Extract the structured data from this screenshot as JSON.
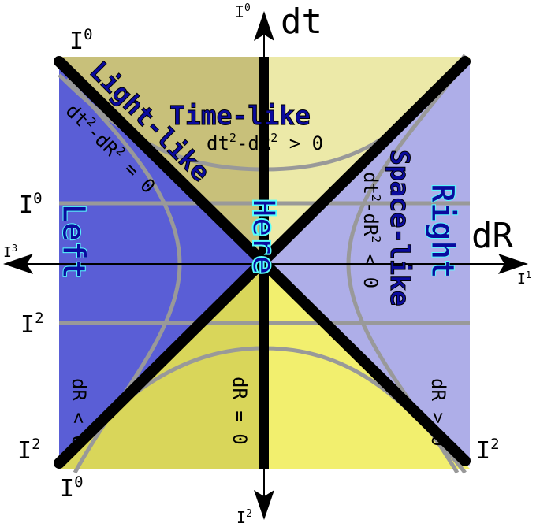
{
  "axes": {
    "time_label": "dt",
    "space_label": "dR"
  },
  "regions": {
    "time_like": {
      "label": "Time-like",
      "condition_prefix": "dt",
      "condition_mid": "-dR",
      "condition_suffix": " > 0",
      "exponent": "2"
    },
    "light_like": {
      "label": "Light-like",
      "condition_prefix": "dt",
      "condition_mid": "-dR",
      "condition_suffix": " = 0",
      "exponent": "2"
    },
    "space_like": {
      "label": "Space-like",
      "condition_prefix": "dt",
      "condition_mid": "-dR",
      "condition_suffix": " < 0",
      "exponent": "2"
    },
    "left": "Left",
    "right": "Right",
    "here": "Here"
  },
  "conditions": {
    "dr_zero": "dR = 0",
    "dr_negative": "dR < 0",
    "dr_positive": "dR > 0"
  },
  "infinity": {
    "I0_top_axis": {
      "letter": "I",
      "index": "0"
    },
    "I0_top_left": {
      "letter": "I",
      "index": "0"
    },
    "I0_mid_left": {
      "letter": "I",
      "index": "0"
    },
    "I3_left": {
      "letter": "I",
      "index": "3"
    },
    "I1_right": {
      "letter": "I",
      "index": "1"
    },
    "I2_mid_left": {
      "letter": "I",
      "index": "2"
    },
    "I2_bottom_left": {
      "letter": "I",
      "index": "2"
    },
    "I2_bottom_right": {
      "letter": "I",
      "index": "2"
    },
    "I0_bottom_left": {
      "letter": "I",
      "index": "0"
    },
    "I2_bottom_axis": {
      "letter": "I",
      "index": "2"
    }
  },
  "colors": {
    "upper_left": "#c8c07a",
    "upper_right": "#ece9a8",
    "lower_left": "#d9d65a",
    "lower_right": "#f2ef6e",
    "left_region": "#5a5ed6",
    "right_region": "#aeaee8",
    "light_line": "#000000",
    "curve": "#999999",
    "region_text": "#0a0a9e",
    "here_text": "#55ffff"
  }
}
